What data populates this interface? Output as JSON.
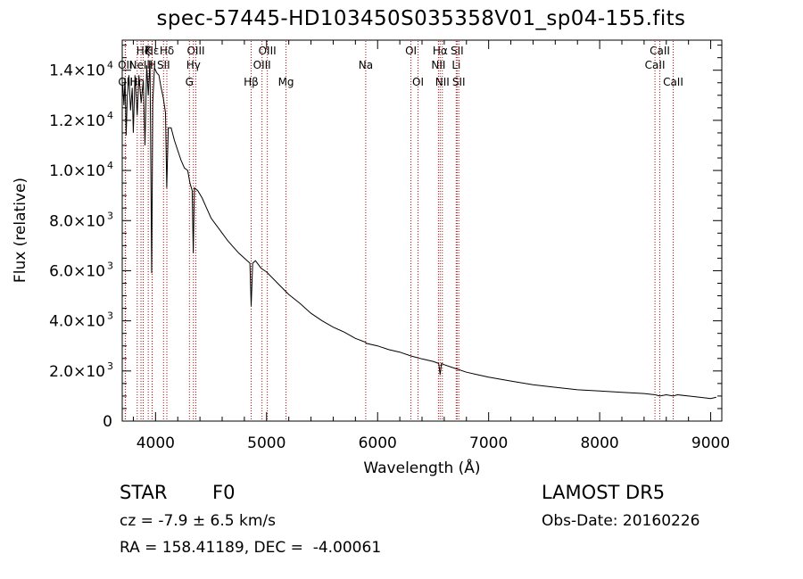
{
  "page": {
    "background": "#ffffff",
    "ink": "#000000",
    "line_color": "#c00000"
  },
  "info": {
    "object_class": "STAR",
    "subclass": "F0",
    "survey": "LAMOST DR5",
    "cz": "cz = -7.9 ± 6.5 km/s",
    "obs_date": "Obs-Date: 20160226",
    "coords": "RA = 158.41189, DEC =  -4.00061"
  },
  "chart_data": {
    "type": "line",
    "title": "spec-57445-HD103450S035358V01_sp04-155.fits",
    "xlabel": "Wavelength (Å)",
    "ylabel": "Flux (relative)",
    "xlim": [
      3700,
      9100
    ],
    "ylim": [
      0,
      15200
    ],
    "x_ticks": [
      4000,
      5000,
      6000,
      7000,
      8000,
      9000
    ],
    "y_ticks": [
      {
        "v": 0,
        "m": "0",
        "e": ""
      },
      {
        "v": 2000,
        "m": "2.0×10",
        "e": "3"
      },
      {
        "v": 4000,
        "m": "4.0×10",
        "e": "3"
      },
      {
        "v": 6000,
        "m": "6.0×10",
        "e": "3"
      },
      {
        "v": 8000,
        "m": "8.0×10",
        "e": "3"
      },
      {
        "v": 10000,
        "m": "1.0×10",
        "e": "4"
      },
      {
        "v": 12000,
        "m": "1.2×10",
        "e": "4"
      },
      {
        "v": 14000,
        "m": "1.4×10",
        "e": "4"
      }
    ],
    "grid": false,
    "series": [
      {
        "x": [
          3705,
          3715,
          3725,
          3735,
          3745,
          3760,
          3775,
          3790,
          3800,
          3815,
          3835,
          3850,
          3870,
          3890,
          3905,
          3920,
          3935,
          3950,
          3965,
          3975,
          3990,
          4010,
          4030,
          4050,
          4070,
          4090,
          4101,
          4115,
          4140,
          4170,
          4200,
          4230,
          4260,
          4290,
          4310,
          4330,
          4340,
          4350,
          4380,
          4420,
          4450,
          4500,
          4550,
          4600,
          4650,
          4700,
          4750,
          4800,
          4850,
          4861,
          4875,
          4900,
          4950,
          5000,
          5100,
          5200,
          5300,
          5400,
          5500,
          5600,
          5700,
          5800,
          5890,
          5900,
          6000,
          6100,
          6200,
          6300,
          6400,
          6500,
          6550,
          6563,
          6575,
          6600,
          6700,
          6800,
          6900,
          7000,
          7200,
          7400,
          7600,
          7800,
          8000,
          8200,
          8400,
          8500,
          8542,
          8600,
          8662,
          8700,
          8800,
          8900,
          9000,
          9050
        ],
        "y": [
          13400,
          12600,
          13700,
          11400,
          12900,
          13800,
          12400,
          13300,
          11500,
          13800,
          12200,
          13800,
          12700,
          13600,
          11000,
          14200,
          13000,
          14400,
          5900,
          12700,
          14100,
          13900,
          13800,
          13300,
          12900,
          12300,
          9300,
          11700,
          11700,
          11200,
          10800,
          10400,
          10100,
          10000,
          9500,
          9200,
          6700,
          9300,
          9200,
          8900,
          8600,
          8100,
          7800,
          7500,
          7200,
          6950,
          6700,
          6500,
          6300,
          4600,
          6300,
          6400,
          6100,
          5950,
          5500,
          5050,
          4700,
          4300,
          4000,
          3750,
          3550,
          3300,
          3150,
          3100,
          3000,
          2850,
          2750,
          2600,
          2480,
          2380,
          2300,
          1850,
          2300,
          2250,
          2100,
          1950,
          1850,
          1750,
          1600,
          1450,
          1350,
          1250,
          1200,
          1150,
          1100,
          1050,
          1000,
          1050,
          1000,
          1050,
          1000,
          950,
          900,
          950
        ]
      }
    ],
    "spectral_lines": [
      {
        "label": "Hε",
        "wl": 3970,
        "row": 1
      },
      {
        "label": "OII",
        "wl": 3727,
        "row": 2
      },
      {
        "label": "OII",
        "wl": 3729,
        "row": 3
      },
      {
        "label": "Hζ",
        "wl": 3889,
        "row": 1
      },
      {
        "label": "NeIII",
        "wl": 3869,
        "row": 2
      },
      {
        "label": "Hη",
        "wl": 3835,
        "row": 3
      },
      {
        "label": "K",
        "wl": 3934,
        "row": 1
      },
      {
        "label": "H",
        "wl": 3969,
        "row": 2
      },
      {
        "label": "Hδ",
        "wl": 4102,
        "row": 1
      },
      {
        "label": "SII",
        "wl": 4072,
        "row": 2
      },
      {
        "label": "OIII",
        "wl": 4363,
        "row": 1
      },
      {
        "label": "Hγ",
        "wl": 4341,
        "row": 2
      },
      {
        "label": "G",
        "wl": 4305,
        "row": 3
      },
      {
        "label": "Hβ",
        "wl": 4861,
        "row": 3
      },
      {
        "label": "OIII",
        "wl": 5007,
        "row": 1
      },
      {
        "label": "OIII",
        "wl": 4959,
        "row": 2
      },
      {
        "label": "Mg",
        "wl": 5175,
        "row": 3
      },
      {
        "label": "Na",
        "wl": 5893,
        "row": 2
      },
      {
        "label": "OI",
        "wl": 6300,
        "row": 1
      },
      {
        "label": "OI",
        "wl": 6364,
        "row": 3
      },
      {
        "label": "Hα",
        "wl": 6563,
        "row": 1
      },
      {
        "label": "NII",
        "wl": 6548,
        "row": 2
      },
      {
        "label": "NII",
        "wl": 6583,
        "row": 3
      },
      {
        "label": "SII",
        "wl": 6716,
        "row": 1
      },
      {
        "label": "Li",
        "wl": 6708,
        "row": 2
      },
      {
        "label": "SII",
        "wl": 6731,
        "row": 3
      },
      {
        "label": "CaII",
        "wl": 8542,
        "row": 1
      },
      {
        "label": "CaII",
        "wl": 8498,
        "row": 2
      },
      {
        "label": "CaII",
        "wl": 8662,
        "row": 3
      }
    ]
  }
}
